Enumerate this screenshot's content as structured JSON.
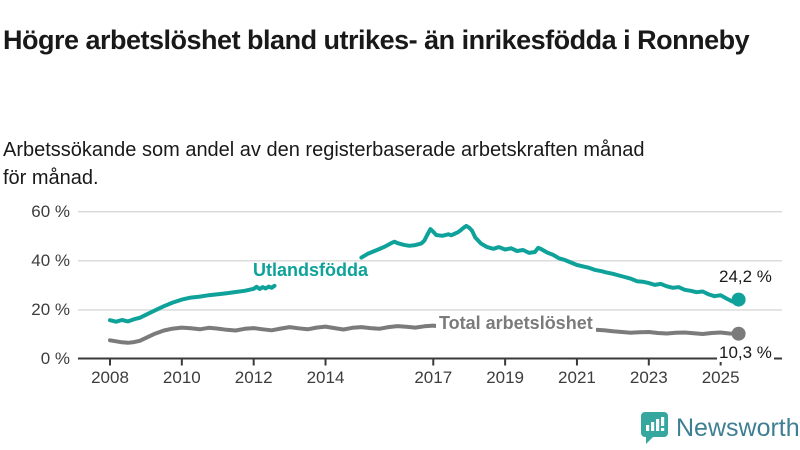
{
  "header": {
    "title": "Högre arbetslöshet bland utrikes- än inrikesfödda i Ronneby",
    "subtitle": "Arbetssökande som andel av den registerbaserade arbetskraften månad för månad."
  },
  "chart_data": {
    "type": "line",
    "title": "Högre arbetslöshet bland utrikes- än inrikesfödda i Ronneby",
    "subtitle": "Arbetssökande som andel av den registerbaserade arbetskraften månad för månad.",
    "unit": "%",
    "grid": "horizontal",
    "x_axis": {
      "tick_years": [
        2008,
        2010,
        2012,
        2014,
        2017,
        2019,
        2021,
        2023,
        2025
      ],
      "tick_labels": [
        "2008",
        "2010",
        "2012",
        "2014",
        "2017",
        "2019",
        "2021",
        "2023",
        "2025"
      ],
      "range": [
        2007.1,
        2026.7
      ]
    },
    "y_axis": {
      "tick_values": [
        0,
        20,
        40,
        60
      ],
      "tick_labels": [
        "0 %",
        "20 %",
        "40 %",
        "60 %"
      ],
      "range": [
        0,
        65
      ]
    },
    "series": [
      {
        "name": "Utlandsfödda",
        "inline_label": "Utlandsfödda",
        "color": "#0fa29a",
        "end_label": "24,2 %",
        "end_value": 24.2,
        "segments": [
          [
            [
              2008.0,
              15.8
            ],
            [
              2008.17,
              15.2
            ],
            [
              2008.33,
              15.9
            ],
            [
              2008.5,
              15.3
            ],
            [
              2008.67,
              16.2
            ],
            [
              2008.83,
              16.8
            ],
            [
              2009.0,
              18.0
            ],
            [
              2009.25,
              19.8
            ],
            [
              2009.5,
              21.5
            ],
            [
              2009.75,
              23.0
            ],
            [
              2010.0,
              24.2
            ],
            [
              2010.25,
              25.0
            ],
            [
              2010.5,
              25.4
            ],
            [
              2010.75,
              26.0
            ],
            [
              2011.0,
              26.4
            ],
            [
              2011.25,
              26.8
            ],
            [
              2011.5,
              27.3
            ],
            [
              2011.75,
              27.8
            ],
            [
              2012.0,
              28.6
            ],
            [
              2012.08,
              29.4
            ],
            [
              2012.17,
              28.5
            ],
            [
              2012.25,
              29.3
            ],
            [
              2012.33,
              28.7
            ],
            [
              2012.42,
              29.5
            ],
            [
              2012.5,
              29.0
            ],
            [
              2012.58,
              29.8
            ]
          ],
          [
            [
              2015.0,
              41.3
            ],
            [
              2015.17,
              42.8
            ],
            [
              2015.33,
              43.8
            ],
            [
              2015.5,
              44.8
            ],
            [
              2015.67,
              45.9
            ],
            [
              2015.83,
              47.2
            ],
            [
              2015.92,
              47.8
            ],
            [
              2016.0,
              47.2
            ],
            [
              2016.17,
              46.5
            ],
            [
              2016.33,
              46.1
            ],
            [
              2016.5,
              46.4
            ],
            [
              2016.67,
              47.1
            ],
            [
              2016.75,
              48.2
            ],
            [
              2016.83,
              50.5
            ],
            [
              2016.92,
              52.9
            ],
            [
              2017.0,
              51.8
            ],
            [
              2017.08,
              50.5
            ],
            [
              2017.25,
              50.2
            ],
            [
              2017.42,
              50.8
            ],
            [
              2017.5,
              50.4
            ],
            [
              2017.58,
              50.9
            ],
            [
              2017.67,
              51.5
            ],
            [
              2017.75,
              52.3
            ],
            [
              2017.83,
              53.3
            ],
            [
              2017.92,
              54.2
            ],
            [
              2018.0,
              53.5
            ],
            [
              2018.08,
              52.2
            ],
            [
              2018.17,
              49.5
            ],
            [
              2018.33,
              47.0
            ],
            [
              2018.5,
              45.6
            ],
            [
              2018.67,
              44.9
            ],
            [
              2018.83,
              45.6
            ],
            [
              2019.0,
              44.6
            ],
            [
              2019.17,
              45.1
            ],
            [
              2019.33,
              44.0
            ],
            [
              2019.5,
              44.4
            ],
            [
              2019.67,
              43.2
            ],
            [
              2019.83,
              43.6
            ],
            [
              2019.92,
              45.3
            ],
            [
              2020.0,
              44.8
            ],
            [
              2020.17,
              43.4
            ],
            [
              2020.33,
              42.5
            ],
            [
              2020.5,
              41.0
            ],
            [
              2020.67,
              40.3
            ],
            [
              2020.83,
              39.3
            ],
            [
              2021.0,
              38.3
            ],
            [
              2021.17,
              37.7
            ],
            [
              2021.33,
              37.2
            ],
            [
              2021.5,
              36.3
            ],
            [
              2021.67,
              35.8
            ],
            [
              2021.83,
              35.2
            ],
            [
              2022.0,
              34.7
            ],
            [
              2022.17,
              34.0
            ],
            [
              2022.33,
              33.4
            ],
            [
              2022.5,
              32.7
            ],
            [
              2022.67,
              31.7
            ],
            [
              2022.83,
              31.5
            ],
            [
              2023.0,
              30.9
            ],
            [
              2023.17,
              30.2
            ],
            [
              2023.33,
              30.6
            ],
            [
              2023.5,
              29.6
            ],
            [
              2023.67,
              29.0
            ],
            [
              2023.83,
              29.3
            ],
            [
              2024.0,
              28.2
            ],
            [
              2024.17,
              27.8
            ],
            [
              2024.33,
              27.2
            ],
            [
              2024.5,
              27.5
            ],
            [
              2024.67,
              26.3
            ],
            [
              2024.83,
              25.6
            ],
            [
              2025.0,
              26.0
            ],
            [
              2025.17,
              24.6
            ],
            [
              2025.33,
              23.4
            ],
            [
              2025.42,
              23.8
            ],
            [
              2025.5,
              24.2
            ]
          ]
        ]
      },
      {
        "name": "Total arbetslöshet",
        "inline_label": "Total arbetslöshet",
        "color": "#7b7b7b",
        "end_label": "10,3 %",
        "end_value": 10.3,
        "segments": [
          [
            [
              2008.0,
              7.6
            ],
            [
              2008.17,
              7.2
            ],
            [
              2008.33,
              6.8
            ],
            [
              2008.5,
              6.6
            ],
            [
              2008.67,
              6.9
            ],
            [
              2008.83,
              7.4
            ],
            [
              2009.0,
              8.6
            ],
            [
              2009.25,
              10.3
            ],
            [
              2009.5,
              11.6
            ],
            [
              2009.75,
              12.4
            ],
            [
              2010.0,
              12.8
            ],
            [
              2010.25,
              12.5
            ],
            [
              2010.5,
              12.1
            ],
            [
              2010.75,
              12.7
            ],
            [
              2011.0,
              12.4
            ],
            [
              2011.25,
              11.9
            ],
            [
              2011.5,
              11.6
            ],
            [
              2011.75,
              12.3
            ],
            [
              2012.0,
              12.6
            ],
            [
              2012.25,
              12.1
            ],
            [
              2012.5,
              11.7
            ],
            [
              2012.75,
              12.4
            ],
            [
              2013.0,
              13.0
            ],
            [
              2013.25,
              12.5
            ],
            [
              2013.5,
              12.1
            ],
            [
              2013.75,
              12.8
            ],
            [
              2014.0,
              13.2
            ],
            [
              2014.25,
              12.6
            ],
            [
              2014.5,
              12.0
            ],
            [
              2014.75,
              12.7
            ],
            [
              2015.0,
              13.0
            ],
            [
              2015.25,
              12.6
            ],
            [
              2015.5,
              12.3
            ],
            [
              2015.75,
              13.0
            ],
            [
              2016.0,
              13.4
            ],
            [
              2016.25,
              13.1
            ],
            [
              2016.5,
              12.8
            ],
            [
              2016.75,
              13.3
            ],
            [
              2017.0,
              13.6
            ],
            [
              2017.25,
              13.1
            ],
            [
              2017.5,
              12.7
            ],
            [
              2017.75,
              13.2
            ],
            [
              2018.0,
              13.0
            ],
            [
              2018.25,
              12.4
            ],
            [
              2018.5,
              12.1
            ],
            [
              2018.75,
              12.6
            ],
            [
              2019.0,
              12.3
            ],
            [
              2019.25,
              11.9
            ],
            [
              2019.5,
              11.7
            ],
            [
              2019.75,
              12.1
            ],
            [
              2020.0,
              12.4
            ],
            [
              2020.25,
              13.1
            ],
            [
              2020.5,
              13.5
            ],
            [
              2020.75,
              13.2
            ],
            [
              2021.0,
              12.8
            ],
            [
              2021.25,
              12.3
            ],
            [
              2021.5,
              11.9
            ],
            [
              2021.75,
              11.7
            ],
            [
              2022.0,
              11.3
            ],
            [
              2022.25,
              11.0
            ],
            [
              2022.5,
              10.7
            ],
            [
              2022.75,
              10.9
            ],
            [
              2023.0,
              11.0
            ],
            [
              2023.25,
              10.6
            ],
            [
              2023.5,
              10.4
            ],
            [
              2023.75,
              10.7
            ],
            [
              2024.0,
              10.8
            ],
            [
              2024.25,
              10.5
            ],
            [
              2024.5,
              10.2
            ],
            [
              2024.75,
              10.6
            ],
            [
              2025.0,
              10.8
            ],
            [
              2025.25,
              10.4
            ],
            [
              2025.5,
              10.3
            ]
          ]
        ]
      }
    ],
    "colors": {
      "teal": "#0fa29a",
      "gray_line": "#7b7b7b",
      "gridline": "#d8d8d8",
      "axis": "#3a3a3a",
      "text": "#191919",
      "logo_teal": "#35a79e",
      "logo_text": "#3f7f93"
    }
  },
  "branding": {
    "logo_text": "Newsworthy"
  }
}
